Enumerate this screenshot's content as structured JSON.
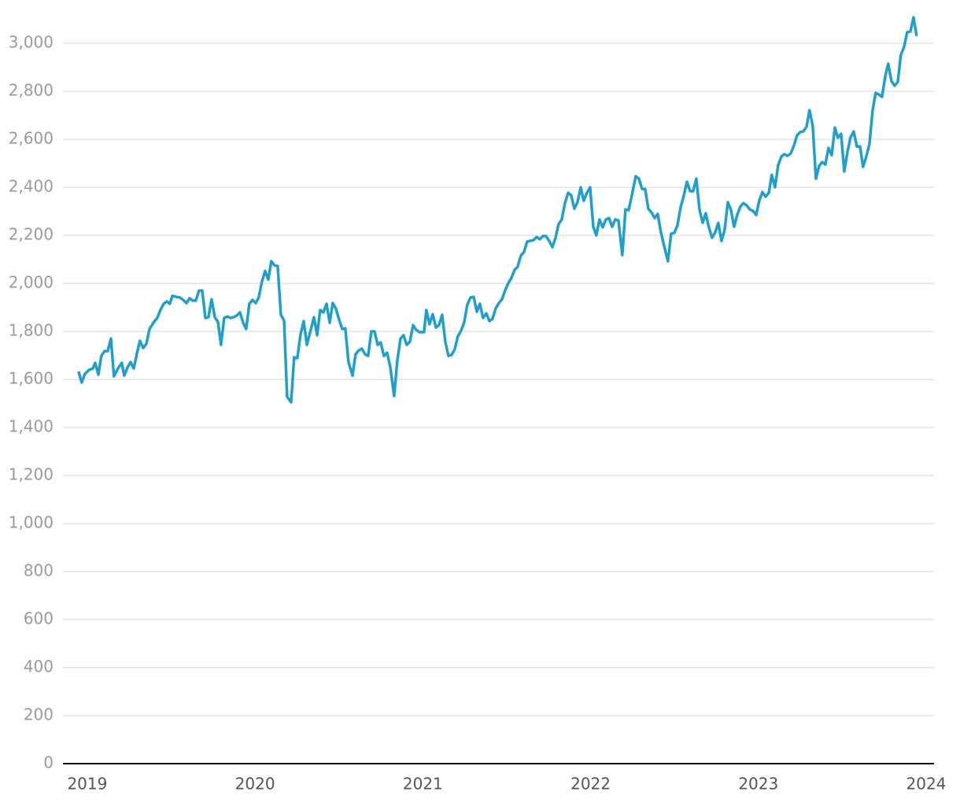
{
  "chart_data": {
    "type": "line",
    "color": "#1fa0cc",
    "grid": true,
    "xlim": [
      2018.855,
      2024.047
    ],
    "xticks": [
      2019,
      2020,
      2021,
      2022,
      2023,
      2024
    ],
    "ylim": [
      0,
      3131
    ],
    "yticks": [
      0,
      200,
      400,
      600,
      800,
      {
        "value": 1000,
        "label": "1,000"
      },
      {
        "value": 1200,
        "label": "1,200"
      },
      {
        "value": 1400,
        "label": "1,400"
      },
      {
        "value": 1600,
        "label": "1,600"
      },
      {
        "value": 1800,
        "label": "1,800"
      },
      {
        "value": 2000,
        "label": "2,000"
      },
      {
        "value": 2200,
        "label": "2,200"
      },
      {
        "value": 2400,
        "label": "2,400"
      },
      {
        "value": 2600,
        "label": "2,600"
      },
      {
        "value": 2800,
        "label": "2,800"
      },
      {
        "value": 3000,
        "label": "3,000"
      }
    ],
    "x": [
      2018.948,
      2018.967,
      2018.986,
      2019.009,
      2019.033,
      2019.047,
      2019.066,
      2019.084,
      2019.103,
      2019.122,
      2019.141,
      2019.159,
      2019.183,
      2019.206,
      2019.22,
      2019.239,
      2019.258,
      2019.277,
      2019.295,
      2019.314,
      2019.333,
      2019.352,
      2019.371,
      2019.394,
      2019.417,
      2019.436,
      2019.455,
      2019.474,
      2019.492,
      2019.507,
      2019.53,
      2019.553,
      2019.572,
      2019.591,
      2019.61,
      2019.628,
      2019.647,
      2019.666,
      2019.685,
      2019.704,
      2019.722,
      2019.741,
      2019.76,
      2019.779,
      2019.797,
      2019.816,
      2019.835,
      2019.854,
      2019.872,
      2019.891,
      2019.91,
      2019.929,
      2019.947,
      2019.966,
      2019.985,
      2020.004,
      2020.022,
      2020.041,
      2020.06,
      2020.079,
      2020.097,
      2020.116,
      2020.135,
      2020.154,
      2020.173,
      2020.191,
      2020.215,
      2020.233,
      2020.252,
      2020.271,
      2020.29,
      2020.309,
      2020.327,
      2020.351,
      2020.37,
      2020.388,
      2020.407,
      2020.426,
      2020.445,
      2020.463,
      2020.482,
      2020.501,
      2020.52,
      2020.538,
      2020.557,
      2020.581,
      2020.599,
      2020.618,
      2020.637,
      2020.656,
      2020.674,
      2020.693,
      2020.712,
      2020.731,
      2020.749,
      2020.768,
      2020.787,
      2020.806,
      2020.829,
      2020.848,
      2020.867,
      2020.885,
      2020.904,
      2020.923,
      2020.942,
      2020.96,
      2020.979,
      2021.007,
      2021.021,
      2021.04,
      2021.059,
      2021.078,
      2021.096,
      2021.115,
      2021.134,
      2021.153,
      2021.171,
      2021.19,
      2021.209,
      2021.228,
      2021.247,
      2021.265,
      2021.284,
      2021.303,
      2021.322,
      2021.34,
      2021.359,
      2021.378,
      2021.397,
      2021.415,
      2021.434,
      2021.453,
      2021.472,
      2021.49,
      2021.509,
      2021.528,
      2021.547,
      2021.565,
      2021.584,
      2021.603,
      2021.622,
      2021.641,
      2021.659,
      2021.678,
      2021.697,
      2021.716,
      2021.734,
      2021.753,
      2021.772,
      2021.791,
      2021.809,
      2021.828,
      2021.847,
      2021.866,
      2021.884,
      2021.903,
      2021.922,
      2021.941,
      2021.959,
      2021.978,
      2021.997,
      2022.016,
      2022.034,
      2022.053,
      2022.072,
      2022.091,
      2022.11,
      2022.128,
      2022.147,
      2022.166,
      2022.189,
      2022.208,
      2022.227,
      2022.246,
      2022.269,
      2022.288,
      2022.307,
      2022.325,
      2022.344,
      2022.363,
      2022.382,
      2022.4,
      2022.419,
      2022.438,
      2022.461,
      2022.48,
      2022.499,
      2022.518,
      2022.536,
      2022.555,
      2022.574,
      2022.593,
      2022.611,
      2022.63,
      2022.649,
      2022.668,
      2022.686,
      2022.705,
      2022.724,
      2022.743,
      2022.761,
      2022.78,
      2022.799,
      2022.818,
      2022.836,
      2022.855,
      2022.874,
      2022.893,
      2022.911,
      2022.93,
      2022.949,
      2022.968,
      2022.987,
      2023.005,
      2023.024,
      2023.043,
      2023.062,
      2023.08,
      2023.099,
      2023.118,
      2023.137,
      2023.155,
      2023.174,
      2023.193,
      2023.212,
      2023.23,
      2023.249,
      2023.268,
      2023.287,
      2023.305,
      2023.324,
      2023.343,
      2023.362,
      2023.38,
      2023.399,
      2023.418,
      2023.437,
      2023.456,
      2023.474,
      2023.493,
      2023.512,
      2023.531,
      2023.549,
      2023.568,
      2023.587,
      2023.606,
      2023.624,
      2023.643,
      2023.662,
      2023.681,
      2023.699,
      2023.718,
      2023.737,
      2023.756,
      2023.774,
      2023.793,
      2023.812,
      2023.831,
      2023.849,
      2023.868,
      2023.887,
      2023.906,
      2023.925,
      2023.943
    ],
    "values": [
      1633,
      1587,
      1623,
      1639,
      1646,
      1669,
      1620,
      1698,
      1718,
      1718,
      1770,
      1613,
      1646,
      1669,
      1616,
      1649,
      1672,
      1646,
      1705,
      1761,
      1731,
      1748,
      1810,
      1836,
      1856,
      1889,
      1915,
      1925,
      1915,
      1948,
      1944,
      1941,
      1931,
      1918,
      1938,
      1928,
      1928,
      1970,
      1970,
      1856,
      1859,
      1934,
      1859,
      1839,
      1744,
      1856,
      1862,
      1856,
      1859,
      1866,
      1879,
      1836,
      1810,
      1915,
      1931,
      1918,
      1941,
      2007,
      2052,
      2016,
      2092,
      2075,
      2072,
      1869,
      1846,
      1528,
      1505,
      1692,
      1689,
      1787,
      1843,
      1744,
      1793,
      1859,
      1784,
      1889,
      1879,
      1915,
      1836,
      1918,
      1895,
      1849,
      1810,
      1813,
      1672,
      1616,
      1705,
      1721,
      1728,
      1705,
      1698,
      1800,
      1800,
      1744,
      1754,
      1698,
      1711,
      1652,
      1531,
      1679,
      1770,
      1784,
      1744,
      1757,
      1826,
      1807,
      1797,
      1797,
      1889,
      1830,
      1872,
      1816,
      1826,
      1869,
      1757,
      1698,
      1702,
      1725,
      1780,
      1803,
      1839,
      1911,
      1941,
      1944,
      1882,
      1915,
      1856,
      1875,
      1843,
      1852,
      1895,
      1918,
      1934,
      1970,
      2000,
      2023,
      2056,
      2069,
      2115,
      2131,
      2174,
      2177,
      2180,
      2193,
      2184,
      2197,
      2197,
      2177,
      2151,
      2190,
      2246,
      2266,
      2334,
      2377,
      2367,
      2311,
      2338,
      2400,
      2344,
      2377,
      2400,
      2236,
      2200,
      2266,
      2233,
      2266,
      2272,
      2236,
      2266,
      2262,
      2118,
      2308,
      2305,
      2367,
      2446,
      2436,
      2393,
      2393,
      2311,
      2295,
      2272,
      2289,
      2213,
      2157,
      2092,
      2207,
      2210,
      2243,
      2315,
      2364,
      2423,
      2384,
      2384,
      2436,
      2308,
      2252,
      2292,
      2233,
      2190,
      2213,
      2252,
      2177,
      2223,
      2338,
      2308,
      2236,
      2285,
      2321,
      2334,
      2325,
      2308,
      2302,
      2285,
      2344,
      2380,
      2361,
      2377,
      2452,
      2400,
      2492,
      2528,
      2538,
      2531,
      2541,
      2574,
      2616,
      2630,
      2633,
      2652,
      2721,
      2656,
      2436,
      2489,
      2505,
      2495,
      2564,
      2534,
      2649,
      2607,
      2623,
      2466,
      2548,
      2607,
      2633,
      2570,
      2570,
      2485,
      2528,
      2580,
      2721,
      2793,
      2787,
      2777,
      2862,
      2915,
      2843,
      2823,
      2839,
      2951,
      2984,
      3046,
      3049,
      3108,
      3030
    ]
  }
}
